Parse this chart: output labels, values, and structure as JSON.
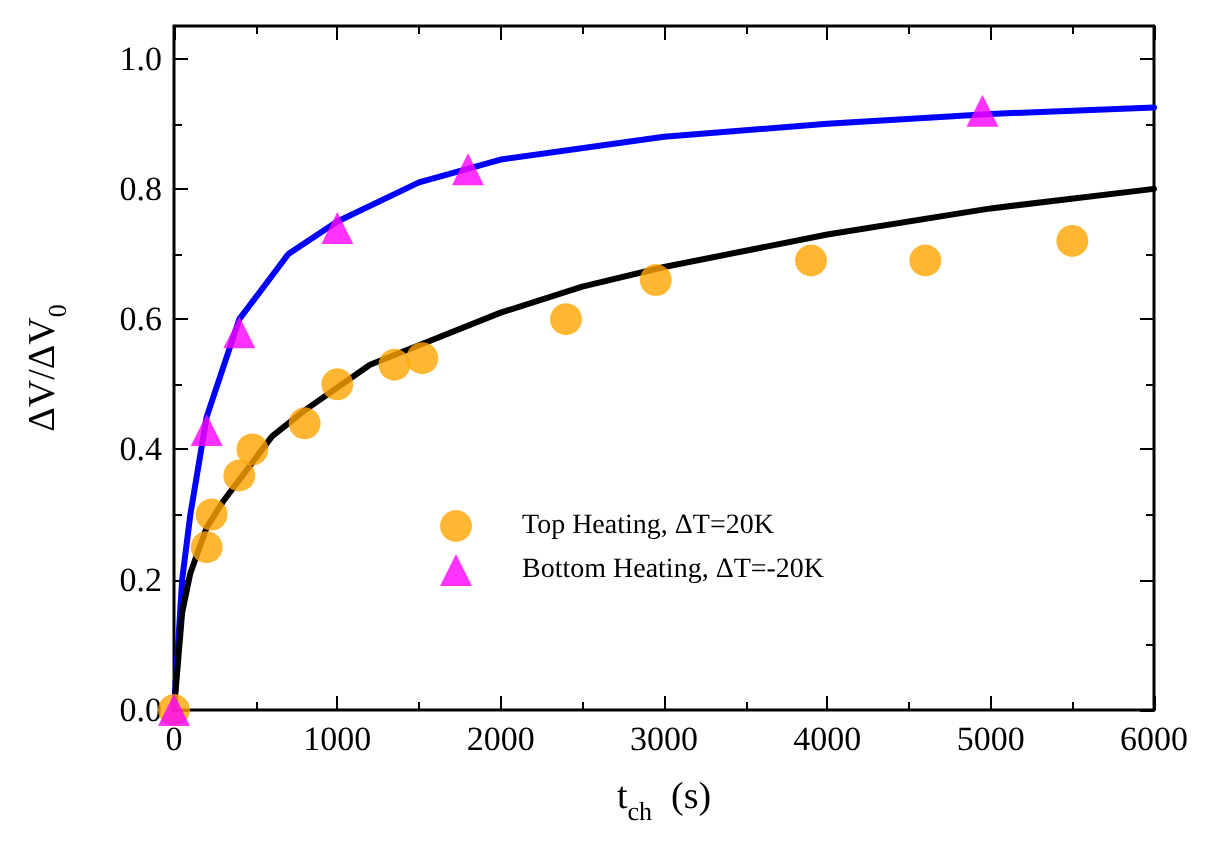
{
  "chart_data": {
    "type": "scatter",
    "xlabel": "t$_{ch}$  (s)",
    "ylabel": "ΔV/ΔV$_{0}$",
    "xlim": [
      0,
      6000
    ],
    "xticks": [
      0,
      1000,
      2000,
      3000,
      4000,
      5000,
      6000
    ],
    "ylim": [
      0,
      1.05
    ],
    "yticks": [
      {
        "value": 0,
        "label": "0.0"
      },
      {
        "value": 0.2,
        "label": "0.2"
      },
      {
        "value": 0.4,
        "label": "0.4"
      },
      {
        "value": 0.6,
        "label": "0.6"
      },
      {
        "value": 0.8,
        "label": "0.8"
      },
      {
        "value": 1,
        "label": "1.0"
      }
    ],
    "grid": false,
    "legend": "bottom",
    "series": [
      {
        "type": "line",
        "color": "#0000ff",
        "marker": "none",
        "x": [
          0,
          50,
          100,
          200,
          400,
          700,
          1000,
          1500,
          2000,
          3000,
          4000,
          5000,
          6000
        ],
        "values": [
          0,
          0.2,
          0.3,
          0.45,
          0.6,
          0.7,
          0.75,
          0.81,
          0.845,
          0.88,
          0.9,
          0.915,
          0.925
        ]
      },
      {
        "type": "line",
        "color": "#000000",
        "marker": "none",
        "x": [
          0,
          50,
          100,
          200,
          300,
          600,
          800,
          1200,
          1500,
          2000,
          2500,
          3000,
          4000,
          5000,
          6000
        ],
        "values": [
          0,
          0.15,
          0.21,
          0.28,
          0.32,
          0.42,
          0.46,
          0.53,
          0.56,
          0.61,
          0.65,
          0.68,
          0.73,
          0.77,
          0.8
        ]
      },
      {
        "name": "Top Heating, ΔT=20K",
        "color": "#ffa500",
        "marker": "circle",
        "x": [
          0,
          200,
          230,
          400,
          480,
          800,
          1000,
          1350,
          1520,
          2400,
          2950,
          3900,
          4600,
          5500
        ],
        "values": [
          0,
          0.25,
          0.3,
          0.36,
          0.4,
          0.44,
          0.5,
          0.53,
          0.54,
          0.6,
          0.66,
          0.69,
          0.69,
          0.72
        ]
      },
      {
        "name": "Bottom Heating, ΔT=-20K",
        "color": "#ff00ff",
        "marker": "triangle",
        "x": [
          0,
          200,
          400,
          1000,
          1800,
          4950
        ],
        "values": [
          0,
          0.43,
          0.58,
          0.74,
          0.83,
          0.92
        ]
      }
    ]
  }
}
